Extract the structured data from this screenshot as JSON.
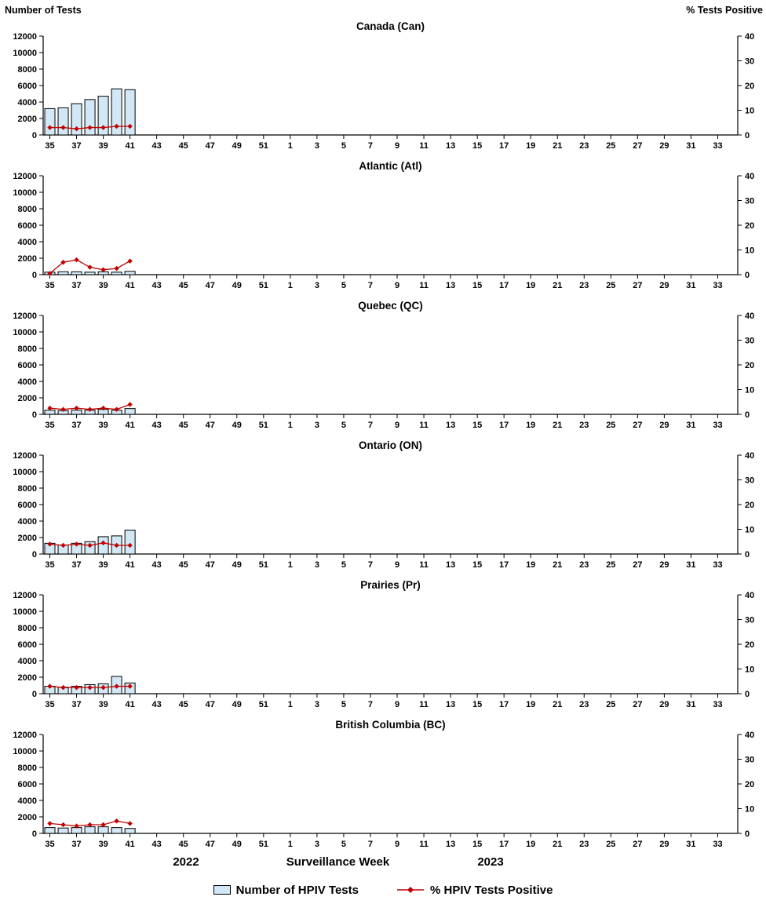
{
  "header": {
    "left_label": "Number of Tests",
    "right_label": "% Tests Positive"
  },
  "footer": {
    "year_left": "2022",
    "axis_label": "Surveillance Week",
    "year_right": "2023"
  },
  "legend": {
    "tests_label": "Number of HPIV Tests",
    "pct_label": "% HPIV Tests Positive"
  },
  "colors": {
    "bar_fill": "#d3e8f6",
    "bar_stroke": "#000000",
    "line": "#c00000",
    "axis": "#000000"
  },
  "chart_data": {
    "type": "combo-bar-line-small-multiples",
    "title": "HPIV laboratory surveillance by region",
    "x_axis": {
      "label": "Surveillance Week",
      "week_start": 35,
      "num_weeks": 52,
      "tick_labels": [
        35,
        37,
        39,
        41,
        43,
        45,
        47,
        49,
        51,
        1,
        3,
        5,
        7,
        9,
        11,
        13,
        15,
        17,
        19,
        21,
        23,
        25,
        27,
        29,
        31,
        33
      ],
      "year_left": "2022",
      "year_right": "2023"
    },
    "left_axis": {
      "label": "Number of Tests",
      "min": 0,
      "max": 12000,
      "ticks": [
        0,
        2000,
        4000,
        6000,
        8000,
        10000,
        12000
      ]
    },
    "right_axis": {
      "label": "% Tests Positive",
      "min": 0,
      "max": 40,
      "ticks": [
        0,
        10,
        20,
        30,
        40
      ]
    },
    "data_weeks": [
      35,
      36,
      37,
      38,
      39,
      40,
      41
    ],
    "panels": [
      {
        "id": "canada",
        "title": "Canada (Can)",
        "tests": [
          3200,
          3300,
          3800,
          4300,
          4700,
          5600,
          5500
        ],
        "pct_positive": [
          3.0,
          3.0,
          2.5,
          3.0,
          3.0,
          3.5,
          3.5
        ]
      },
      {
        "id": "atlantic",
        "title": "Atlantic (Atl)",
        "tests": [
          300,
          350,
          350,
          300,
          350,
          300,
          400
        ],
        "pct_positive": [
          0.5,
          5.0,
          6.0,
          3.0,
          2.0,
          2.5,
          5.5
        ]
      },
      {
        "id": "quebec",
        "title": "Quebec (QC)",
        "tests": [
          500,
          450,
          500,
          500,
          600,
          500,
          700
        ],
        "pct_positive": [
          2.5,
          2.0,
          2.5,
          2.0,
          2.5,
          2.0,
          4.0
        ]
      },
      {
        "id": "ontario",
        "title": "Ontario (ON)",
        "tests": [
          1300,
          1100,
          1300,
          1500,
          2100,
          2200,
          2900
        ],
        "pct_positive": [
          4.0,
          3.5,
          4.0,
          3.5,
          4.5,
          3.5,
          3.5
        ]
      },
      {
        "id": "prairies",
        "title": "Prairies (Pr)",
        "tests": [
          900,
          800,
          900,
          1100,
          1200,
          2100,
          1300
        ],
        "pct_positive": [
          3.0,
          2.5,
          2.5,
          2.5,
          2.5,
          3.0,
          3.0
        ]
      },
      {
        "id": "bc",
        "title": "British Columbia (BC)",
        "tests": [
          700,
          650,
          700,
          800,
          800,
          700,
          600
        ],
        "pct_positive": [
          4.0,
          3.5,
          3.0,
          3.5,
          3.5,
          5.0,
          4.0
        ]
      }
    ]
  }
}
